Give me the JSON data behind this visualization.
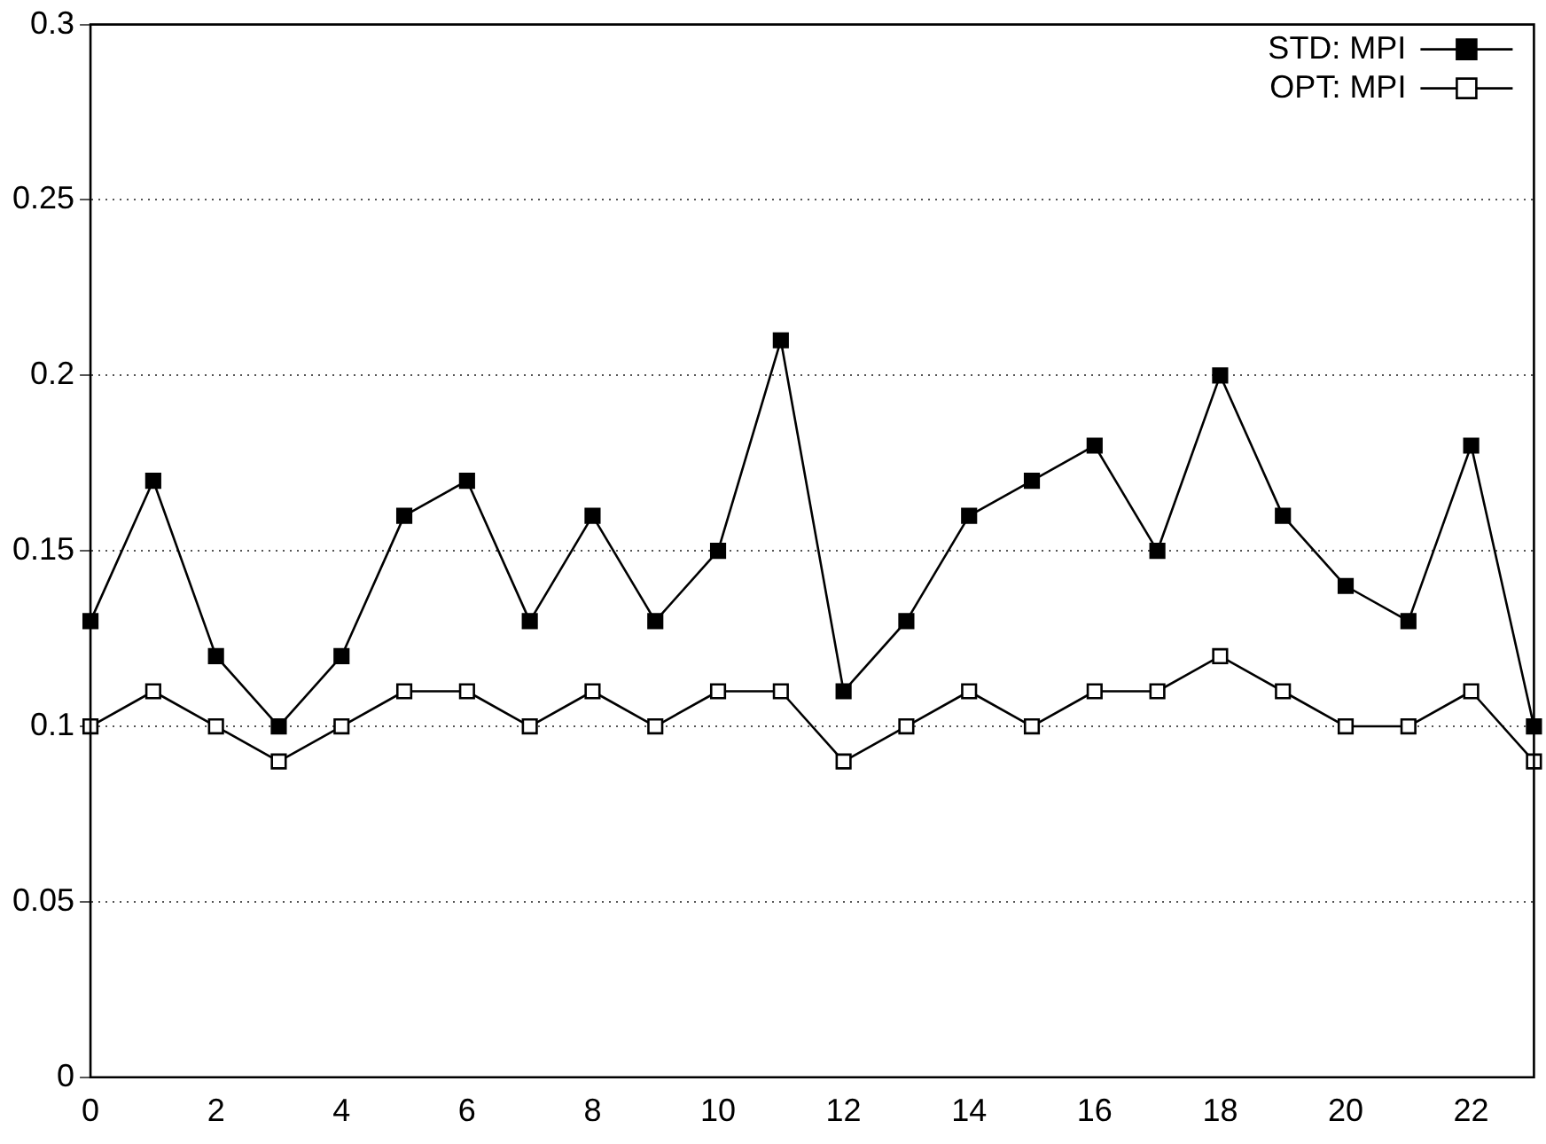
{
  "chart_data": {
    "type": "line",
    "x": [
      0,
      1,
      2,
      3,
      4,
      5,
      6,
      7,
      8,
      9,
      10,
      11,
      12,
      13,
      14,
      15,
      16,
      17,
      18,
      19,
      20,
      21,
      22,
      23
    ],
    "series": [
      {
        "name": "STD: MPI",
        "color": "#000000",
        "marker": "square",
        "values": [
          0.13,
          0.17,
          0.12,
          0.1,
          0.12,
          0.16,
          0.17,
          0.13,
          0.16,
          0.13,
          0.15,
          0.21,
          0.11,
          0.13,
          0.16,
          0.17,
          0.18,
          0.15,
          0.2,
          0.16,
          0.14,
          0.13,
          0.18,
          0.1
        ]
      },
      {
        "name": "OPT: MPI",
        "color": "#000000",
        "marker": "square-open",
        "values": [
          0.1,
          0.11,
          0.1,
          0.09,
          0.1,
          0.11,
          0.11,
          0.1,
          0.11,
          0.1,
          0.11,
          0.11,
          0.09,
          0.1,
          0.11,
          0.1,
          0.11,
          0.11,
          0.12,
          0.11,
          0.1,
          0.1,
          0.11,
          0.09
        ]
      }
    ],
    "xlim": [
      0,
      23
    ],
    "xticks": [
      0,
      2,
      4,
      6,
      8,
      10,
      12,
      14,
      16,
      18,
      20,
      22
    ],
    "ylim": [
      0,
      0.3
    ],
    "yticks": [
      0,
      0.05,
      0.1,
      0.15,
      0.2,
      0.25,
      0.3
    ],
    "grid": "y",
    "legend": "top right",
    "line_style": "solid"
  }
}
